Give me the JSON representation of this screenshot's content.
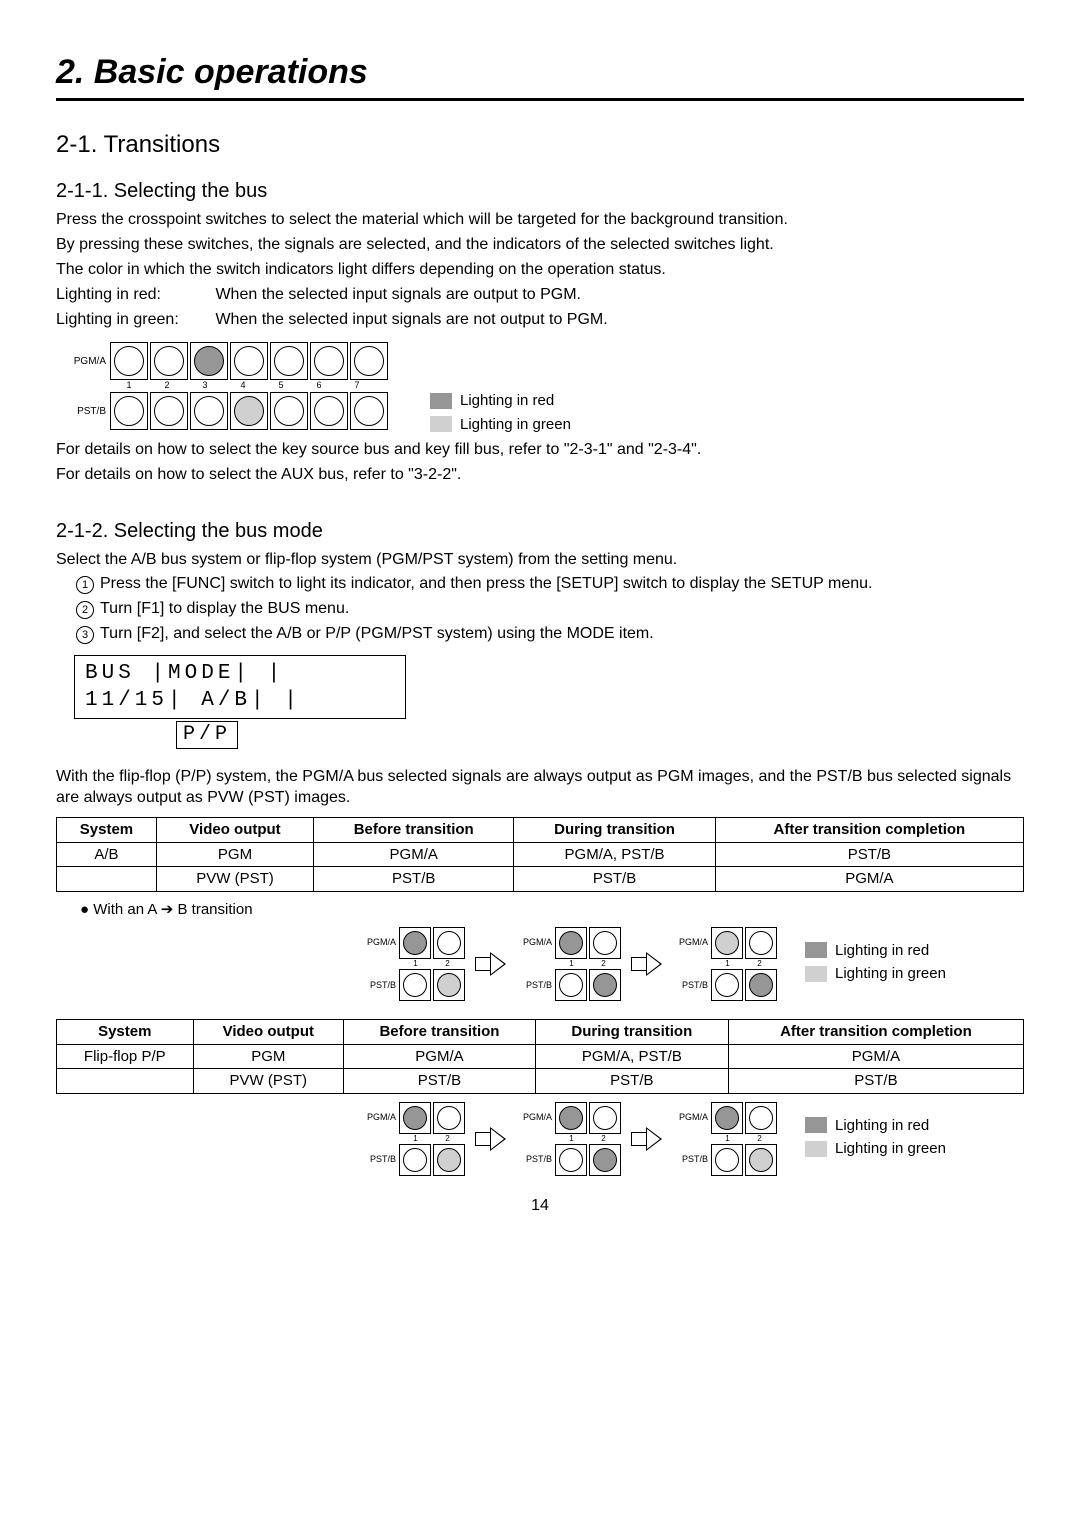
{
  "chapter_title": "2. Basic operations",
  "section_title": "2-1. Transitions",
  "sub1": {
    "title": "2-1-1. Selecting the bus",
    "p1": "Press the crosspoint switches to select the material which will be targeted for the background transition.",
    "p2": "By pressing these switches, the signals are selected, and the indicators of the selected switches light.",
    "p3": "The color in which the switch indicators light differs depending on the operation status.",
    "red_label": "Lighting in red:",
    "red_text": "When the selected input signals are output to PGM.",
    "green_label": "Lighting in green:",
    "green_text": "When the selected input signals are not output to PGM.",
    "diagram": {
      "row_a_label": "PGM/A",
      "row_b_label": "PST/B",
      "num_buttons": 7,
      "numbers": [
        "1",
        "2",
        "3",
        "4",
        "5",
        "6",
        "7"
      ],
      "pgm_states": [
        "off",
        "off",
        "red",
        "off",
        "off",
        "off",
        "off"
      ],
      "pst_states": [
        "off",
        "off",
        "off",
        "green",
        "off",
        "off",
        "off"
      ]
    },
    "legend_red": "Lighting in red",
    "legend_green": "Lighting in green",
    "after1": "For details on how to select the key source bus and key fill bus, refer to \"2-3-1\" and \"2-3-4\".",
    "after2": "For details on how to select the AUX bus, refer to \"3-2-2\"."
  },
  "sub2": {
    "title": "2-1-2. Selecting the bus mode",
    "intro": "Select the A/B bus system or flip-flop system (PGM/PST system) from the setting menu.",
    "step1": "Press the [FUNC] switch to light its indicator, and then press the [SETUP] switch to display the SETUP menu.",
    "step2": "Turn [F1] to display the BUS menu.",
    "step3": "Turn [F2], and select the A/B or P/P (PGM/PST system) using the MODE item.",
    "lcd_line1": "BUS  |MODE|     |",
    "lcd_line2": "11/15| A/B|     |",
    "lcd_sub": "P/P",
    "para": "With the flip-flop (P/P) system, the PGM/A bus selected signals are always output as PGM images, and the PST/B bus selected signals are always output as PVW (PST) images.",
    "table1": {
      "headers": [
        "System",
        "Video output",
        "Before transition",
        "During transition",
        "After transition completion"
      ],
      "rows": [
        [
          "A/B",
          "PGM",
          "PGM/A",
          "PGM/A, PST/B",
          "PST/B"
        ],
        [
          "",
          "PVW (PST)",
          "PST/B",
          "PST/B",
          "PGM/A"
        ]
      ]
    },
    "note_ab": "With an A ➔ B transition",
    "table2": {
      "headers": [
        "System",
        "Video output",
        "Before transition",
        "During transition",
        "After transition completion"
      ],
      "rows": [
        [
          "Flip-flop P/P",
          "PGM",
          "PGM/A",
          "PGM/A, PST/B",
          "PGM/A"
        ],
        [
          "",
          "PVW (PST)",
          "PST/B",
          "PST/B",
          "PST/B"
        ]
      ]
    },
    "trans_ab": {
      "row_a": "PGM/A",
      "row_b": "PST/B",
      "states": [
        {
          "a": [
            "red",
            "off"
          ],
          "b": [
            "off",
            "green"
          ]
        },
        {
          "a": [
            "red",
            "off"
          ],
          "b": [
            "off",
            "red"
          ]
        },
        {
          "a": [
            "green",
            "off"
          ],
          "b": [
            "off",
            "red"
          ]
        }
      ]
    },
    "trans_pp": {
      "row_a": "PGM/A",
      "row_b": "PST/B",
      "states": [
        {
          "a": [
            "red",
            "off"
          ],
          "b": [
            "off",
            "green"
          ]
        },
        {
          "a": [
            "red",
            "off"
          ],
          "b": [
            "off",
            "red"
          ]
        },
        {
          "a": [
            "red",
            "off"
          ],
          "b": [
            "off",
            "green"
          ]
        }
      ]
    },
    "legend_red": "Lighting in red",
    "legend_green": "Lighting in green"
  },
  "page_number": "14",
  "colors": {
    "red_fill": "#969696",
    "green_fill": "#d0d0d0"
  }
}
